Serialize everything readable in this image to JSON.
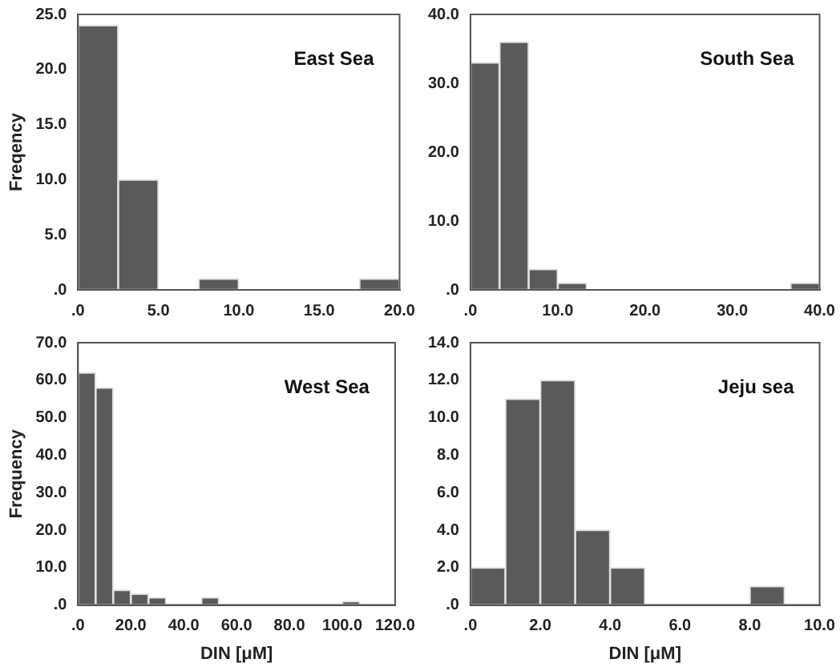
{
  "chart_data": [
    {
      "type": "histogram",
      "annotations": [
        "East Sea"
      ],
      "ylabel": "Freqency",
      "color": "#5a5a5a",
      "bins": [
        0,
        2.5,
        5,
        7.5,
        10,
        12.5,
        15,
        17.5,
        20
      ],
      "values": [
        24,
        10,
        0,
        1,
        0,
        0,
        0,
        1
      ],
      "xlim": [
        0,
        20
      ],
      "xticks": [
        {
          "value": 0,
          "label": ".0"
        },
        {
          "value": 5,
          "label": "5.0"
        },
        {
          "value": 10,
          "label": "10.0"
        },
        {
          "value": 15,
          "label": "15.0"
        },
        {
          "value": 20,
          "label": "20.0"
        }
      ],
      "ylim": [
        0,
        25
      ],
      "yticks": [
        {
          "value": 0,
          "label": ".0"
        },
        {
          "value": 5,
          "label": "5.0"
        },
        {
          "value": 10,
          "label": "10.0"
        },
        {
          "value": 15,
          "label": "15.0"
        },
        {
          "value": 20,
          "label": "20.0"
        },
        {
          "value": 25,
          "label": "25.0"
        }
      ],
      "grid": false
    },
    {
      "type": "histogram",
      "annotations": [
        "South Sea"
      ],
      "color": "#5a5a5a",
      "bins": [
        0,
        3.33,
        6.67,
        10,
        13.33,
        16.67,
        20,
        23.33,
        26.67,
        30,
        33.33,
        36.67,
        40
      ],
      "values": [
        33,
        36,
        3,
        1,
        0,
        0,
        0,
        0,
        0,
        0,
        0,
        1
      ],
      "xlim": [
        0,
        40
      ],
      "xticks": [
        {
          "value": 0,
          "label": ".0"
        },
        {
          "value": 10,
          "label": "10.0"
        },
        {
          "value": 20,
          "label": "20.0"
        },
        {
          "value": 30,
          "label": "30.0"
        },
        {
          "value": 40,
          "label": "40.0"
        }
      ],
      "ylim": [
        0,
        40
      ],
      "yticks": [
        {
          "value": 0,
          "label": ".0"
        },
        {
          "value": 10,
          "label": "10.0"
        },
        {
          "value": 20,
          "label": "20.0"
        },
        {
          "value": 30,
          "label": "30.0"
        },
        {
          "value": 40,
          "label": "40.0"
        }
      ],
      "grid": false
    },
    {
      "type": "histogram",
      "annotations": [
        "West Sea"
      ],
      "ylabel": "Frequency",
      "xlabel": "DIN [μM]",
      "color": "#5a5a5a",
      "bins": [
        0,
        6.67,
        13.33,
        20,
        26.67,
        33.33,
        40,
        46.67,
        53.33,
        60,
        66.67,
        73.33,
        80,
        86.67,
        93.33,
        100,
        106.67,
        113.33,
        120
      ],
      "values": [
        62,
        58,
        4,
        3,
        2,
        0,
        0,
        2,
        0,
        0,
        0,
        0,
        0,
        0,
        0,
        1,
        0,
        0
      ],
      "xlim": [
        0,
        120
      ],
      "xticks": [
        {
          "value": 0,
          "label": ".0"
        },
        {
          "value": 20,
          "label": "20.0"
        },
        {
          "value": 40,
          "label": "40.0"
        },
        {
          "value": 60,
          "label": "60.0"
        },
        {
          "value": 80,
          "label": "80.0"
        },
        {
          "value": 100,
          "label": "100.0"
        },
        {
          "value": 120,
          "label": "120.0"
        }
      ],
      "ylim": [
        0,
        70
      ],
      "yticks": [
        {
          "value": 0,
          "label": ".0"
        },
        {
          "value": 10,
          "label": "10.0"
        },
        {
          "value": 20,
          "label": "20.0"
        },
        {
          "value": 30,
          "label": "30.0"
        },
        {
          "value": 40,
          "label": "40.0"
        },
        {
          "value": 50,
          "label": "50.0"
        },
        {
          "value": 60,
          "label": "60.0"
        },
        {
          "value": 70,
          "label": "70.0"
        }
      ],
      "grid": false
    },
    {
      "type": "histogram",
      "annotations": [
        "Jeju sea"
      ],
      "xlabel": "DIN [μM]",
      "color": "#5a5a5a",
      "bins": [
        0,
        1,
        2,
        3,
        4,
        5,
        6,
        7,
        8,
        9,
        10
      ],
      "values": [
        2,
        11,
        12,
        4,
        2,
        0,
        0,
        0,
        1,
        0
      ],
      "xlim": [
        0,
        10
      ],
      "xticks": [
        {
          "value": 0,
          "label": ".0"
        },
        {
          "value": 2,
          "label": "2.0"
        },
        {
          "value": 4,
          "label": "4.0"
        },
        {
          "value": 6,
          "label": "6.0"
        },
        {
          "value": 8,
          "label": "8.0"
        },
        {
          "value": 10,
          "label": "10.0"
        }
      ],
      "ylim": [
        0,
        14
      ],
      "yticks": [
        {
          "value": 0,
          "label": ".0"
        },
        {
          "value": 2,
          "label": "2.0"
        },
        {
          "value": 4,
          "label": "4.0"
        },
        {
          "value": 6,
          "label": "6.0"
        },
        {
          "value": 8,
          "label": "8.0"
        },
        {
          "value": 10,
          "label": "10.0"
        },
        {
          "value": 12,
          "label": "12.0"
        },
        {
          "value": 14,
          "label": "14.0"
        }
      ],
      "grid": false
    }
  ]
}
